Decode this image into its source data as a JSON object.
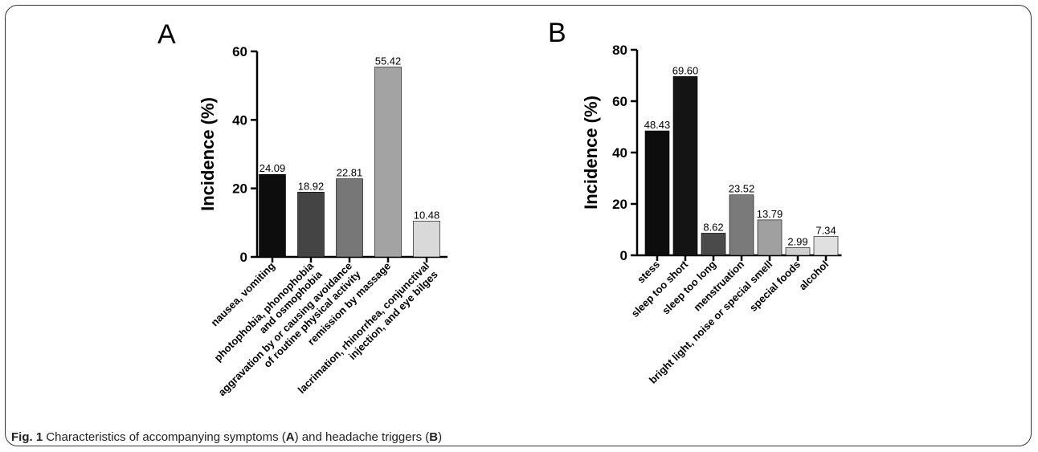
{
  "caption": {
    "label": "Fig. 1",
    "text_1": " Characteristics of accompanying symptoms (",
    "ref_a": "A",
    "text_2": ") and headache triggers (",
    "ref_b": "B",
    "text_3": ")"
  },
  "chart_data": [
    {
      "type": "bar",
      "panel_label": "A",
      "ylabel": "Incidence (%)",
      "ylim": [
        0,
        60
      ],
      "yticks": [
        0,
        20,
        40,
        60
      ],
      "categories": [
        [
          "nausea, vomiting"
        ],
        [
          "photophobia, phonophobia",
          "and osmophobia"
        ],
        [
          "aggravation by or causing avoidance",
          "of routine physical activity"
        ],
        [
          "remission by massage"
        ],
        [
          "lacrimation, rhinorrhea, conjunctival",
          "injection, and eye bilges"
        ]
      ],
      "values": [
        24.09,
        18.92,
        22.81,
        55.42,
        10.48
      ],
      "value_labels": [
        "24.09",
        "18.92",
        "22.81",
        "55.42",
        "10.48"
      ],
      "bar_colors": [
        "#0d0d0d",
        "#444444",
        "#777777",
        "#a3a3a3",
        "#d9d9d9"
      ],
      "grid": false
    },
    {
      "type": "bar",
      "panel_label": "B",
      "ylabel": "Incidence (%)",
      "ylim": [
        0,
        80
      ],
      "yticks": [
        0,
        20,
        40,
        60,
        80
      ],
      "categories": [
        [
          "stess"
        ],
        [
          "sleep too short"
        ],
        [
          "sleep too long"
        ],
        [
          "menstruation"
        ],
        [
          "bright light, noise or special smell"
        ],
        [
          "special foods"
        ],
        [
          "alcohol"
        ]
      ],
      "values": [
        48.43,
        69.6,
        8.62,
        23.52,
        13.79,
        2.99,
        7.34
      ],
      "value_labels": [
        "48.43",
        "69.60",
        "8.62",
        "23.52",
        "13.79",
        "2.99",
        "7.34"
      ],
      "bar_colors": [
        "#0d0d0d",
        "#141414",
        "#4a4a4a",
        "#7a7a7a",
        "#a0a0a0",
        "#cfcfcf",
        "#e0e0e0"
      ],
      "grid": false
    }
  ]
}
